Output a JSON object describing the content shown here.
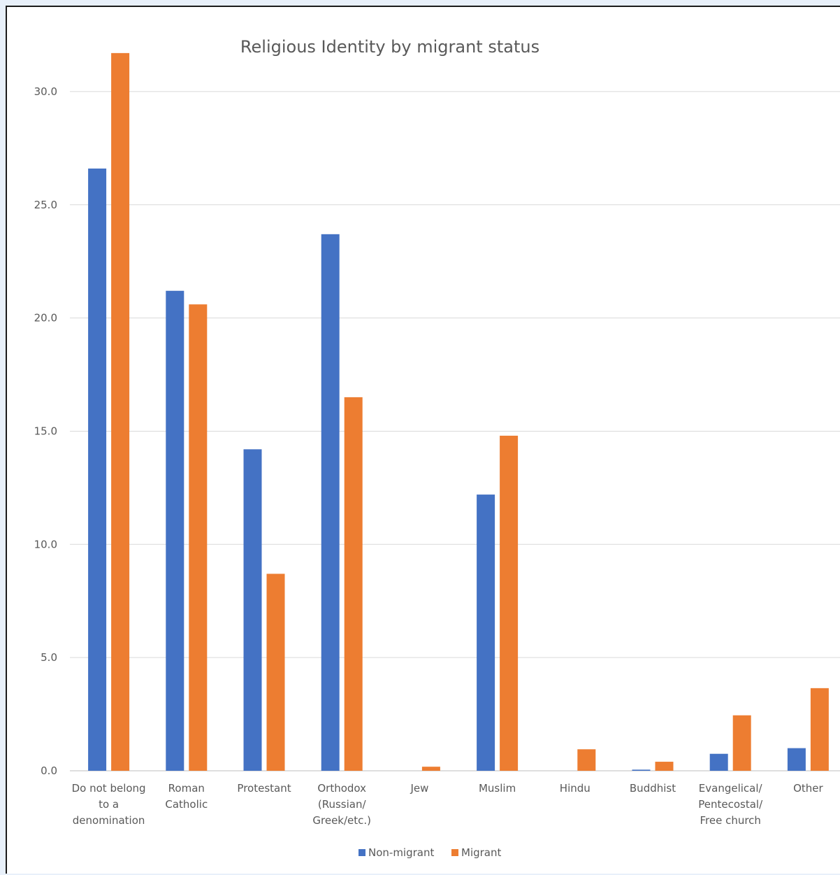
{
  "chart_data": {
    "type": "bar",
    "title": "Religious Identity by migrant status",
    "xlabel": "",
    "ylabel": "",
    "ylim": [
      0,
      31.5
    ],
    "yticks": [
      "0.0",
      "5.0",
      "10.0",
      "15.0",
      "20.0",
      "25.0",
      "30.0"
    ],
    "grid": true,
    "legend_position": "bottom",
    "categories": [
      [
        "Do not belong",
        "to a",
        "denomination"
      ],
      [
        "Roman",
        "Catholic"
      ],
      [
        "Protestant"
      ],
      [
        "Orthodox",
        "(Russian/",
        "Greek/etc.)"
      ],
      [
        "Jew"
      ],
      [
        "Muslim"
      ],
      [
        "Hindu"
      ],
      [
        "Buddhist"
      ],
      [
        "Evangelical/",
        "Pentecostal/",
        "Free church"
      ],
      [
        "Other"
      ]
    ],
    "series": [
      {
        "name": "Non-migrant",
        "color": "#4472c4",
        "values": [
          26.6,
          21.2,
          14.2,
          23.7,
          0.0,
          12.2,
          0.0,
          0.05,
          0.75,
          1.0
        ]
      },
      {
        "name": "Migrant",
        "color": "#ed7d31",
        "values": [
          31.7,
          20.6,
          8.7,
          16.5,
          0.18,
          14.8,
          0.95,
          0.4,
          2.45,
          3.65
        ]
      }
    ]
  }
}
